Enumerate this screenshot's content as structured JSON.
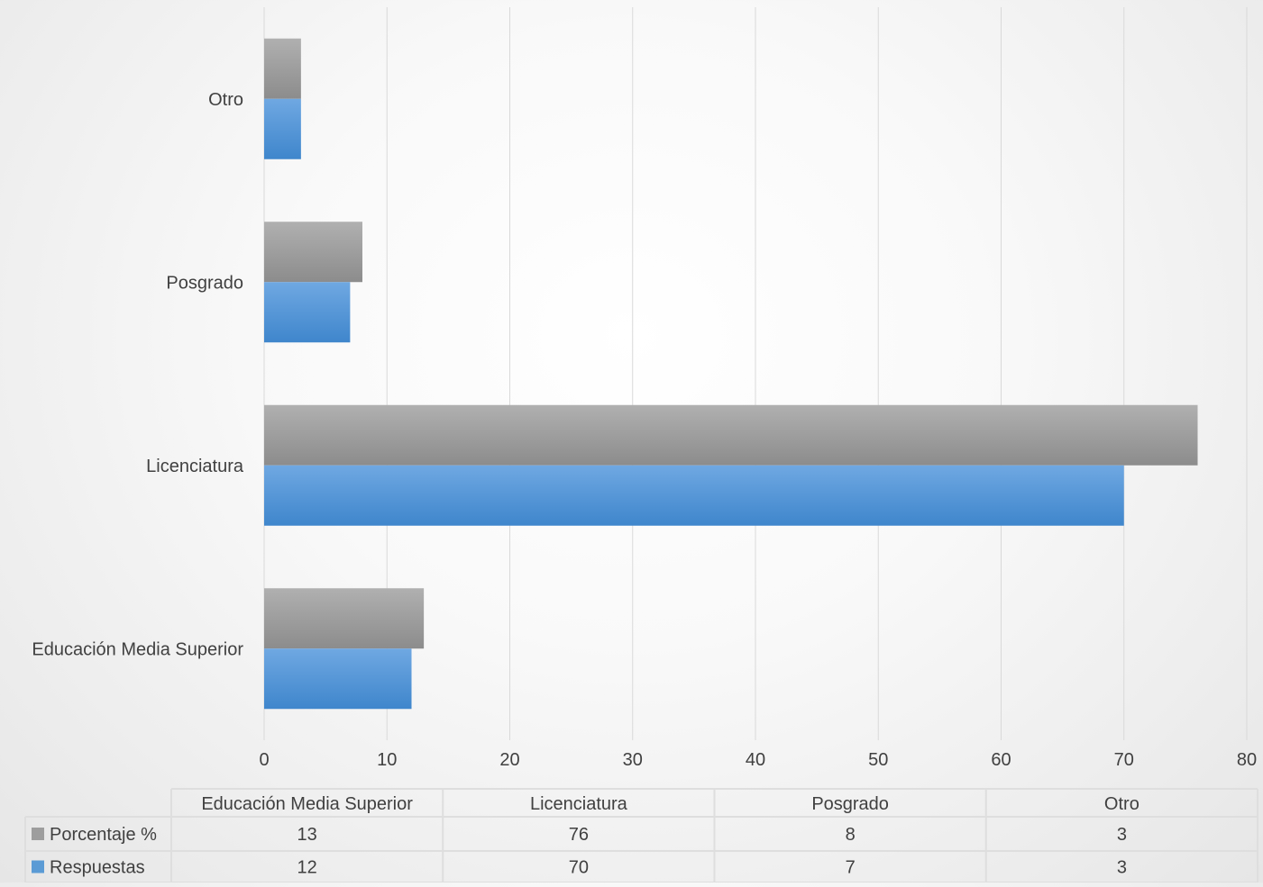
{
  "chart_data": {
    "type": "bar",
    "orientation": "horizontal",
    "categories": [
      "Educación Media Superior",
      "Licenciatura",
      "Posgrado",
      "Otro"
    ],
    "series": [
      {
        "name": "Porcentaje %",
        "values": [
          13,
          76,
          8,
          3
        ],
        "color": "#9d9d9d"
      },
      {
        "name": "Respuestas",
        "values": [
          12,
          70,
          7,
          3
        ],
        "color": "#5b9bd5"
      }
    ],
    "x_ticks": [
      "0",
      "10",
      "20",
      "30",
      "40",
      "50",
      "60",
      "70",
      "80"
    ],
    "xlim": [
      0,
      80
    ],
    "grid": true,
    "legend": "data-table-below"
  }
}
